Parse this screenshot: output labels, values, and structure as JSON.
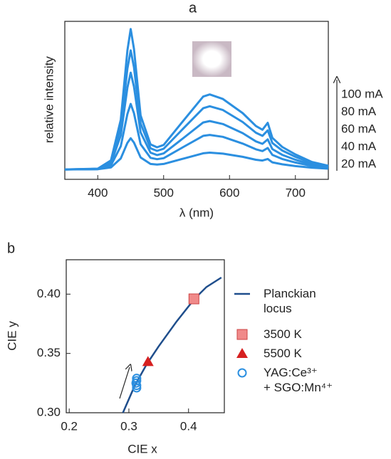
{
  "chart_data": [
    {
      "type": "line",
      "panel": "a",
      "x_label": "λ (nm)",
      "y_label": "relative intensity",
      "x": [
        350,
        400,
        420,
        435,
        445,
        450,
        455,
        465,
        480,
        490,
        500,
        530,
        560,
        570,
        590,
        620,
        640,
        650,
        658,
        665,
        680,
        700,
        725,
        750
      ],
      "xlim": [
        350,
        750
      ],
      "xticks": [
        400,
        500,
        600,
        700
      ],
      "ylim": [
        0,
        8
      ],
      "series": [
        {
          "name": "100 mA",
          "color": "#2b8fe0",
          "values": [
            0.5,
            0.54,
            0.96,
            3.02,
            6.53,
            7.61,
            6.61,
            3.24,
            1.77,
            1.62,
            1.74,
            2.97,
            4.19,
            4.3,
            4.07,
            3.35,
            2.7,
            2.51,
            2.86,
            2.1,
            1.64,
            1.26,
            0.88,
            0.69
          ]
        },
        {
          "name": "80 mA",
          "color": "#2b8fe0",
          "values": [
            0.5,
            0.53,
            0.89,
            2.63,
            5.61,
            6.53,
            5.68,
            2.83,
            1.57,
            1.44,
            1.55,
            2.58,
            3.6,
            3.7,
            3.51,
            2.9,
            2.36,
            2.2,
            2.48,
            1.84,
            1.46,
            1.14,
            0.82,
            0.66
          ]
        },
        {
          "name": "60 mA",
          "color": "#2b8fe0",
          "values": [
            0.5,
            0.52,
            0.81,
            2.23,
            4.65,
            5.4,
            4.7,
            2.38,
            1.35,
            1.23,
            1.31,
            2.09,
            2.88,
            2.95,
            2.8,
            2.34,
            1.92,
            1.8,
            2.02,
            1.53,
            1.24,
            0.99,
            0.75,
            0.62
          ]
        },
        {
          "name": "40 mA",
          "color": "#2b8fe0",
          "values": [
            0.5,
            0.52,
            0.71,
            1.68,
            3.31,
            3.82,
            3.35,
            1.78,
            1.09,
            1.02,
            1.07,
            1.64,
            2.2,
            2.25,
            2.15,
            1.81,
            1.52,
            1.43,
            1.59,
            1.24,
            1.03,
            0.85,
            0.68,
            0.59
          ]
        },
        {
          "name": "20 mA",
          "color": "#2b8fe0",
          "values": [
            0.5,
            0.51,
            0.6,
            1.06,
            1.85,
            2.08,
            1.86,
            1.11,
            0.78,
            0.75,
            0.78,
            1.05,
            1.32,
            1.35,
            1.3,
            1.14,
            0.99,
            0.95,
            1.03,
            0.86,
            0.76,
            0.67,
            0.59,
            0.54
          ]
        }
      ]
    },
    {
      "type": "scatter",
      "panel": "b",
      "x_label": "CIE x",
      "y_label": "CIE y",
      "xlim": [
        0.195,
        0.46
      ],
      "xticks": [
        0.2,
        0.3,
        0.4
      ],
      "ylim": [
        0.3,
        0.429
      ],
      "yticks": [
        {
          "value": 0.3,
          "label": "0.30"
        },
        0.35,
        {
          "value": 0.4,
          "label": "0.40"
        }
      ],
      "series": [
        {
          "name": "Planckian\nlocus",
          "marker": "line",
          "color": "#1f4e8c",
          "x": [
            0.29,
            0.31,
            0.33,
            0.35,
            0.38,
            0.41,
            0.43,
            0.455
          ],
          "values": [
            0.3,
            0.323,
            0.341,
            0.356,
            0.377,
            0.396,
            0.406,
            0.414
          ]
        },
        {
          "name": "3500 K",
          "marker": "square",
          "color": "#f08a8a",
          "x": [
            0.409
          ],
          "values": [
            0.396
          ]
        },
        {
          "name": "5500 K",
          "marker": "triangle",
          "color": "#d62020",
          "x": [
            0.332
          ],
          "values": [
            0.343
          ]
        },
        {
          "name": "YAG:Ce³⁺\n+ SGO:Mn⁴⁺",
          "marker": "circle",
          "color": "#2b8fe0",
          "x": [
            0.313,
            0.313,
            0.312,
            0.313,
            0.313
          ],
          "values": [
            0.321,
            0.323,
            0.325,
            0.327,
            0.329
          ]
        }
      ]
    }
  ]
}
